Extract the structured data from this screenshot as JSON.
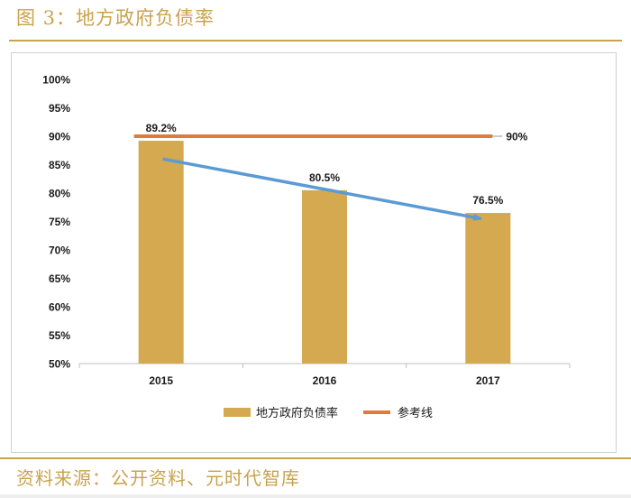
{
  "figure": {
    "title": "图 3：地方政府负债率",
    "source": "资料来源：公开资料、元时代智库"
  },
  "colors": {
    "bar": "#d4a94f",
    "reference": "#e07b39",
    "trend": "#5b9bd5",
    "accent": "#c8a24e",
    "text": "#1a1a1a"
  },
  "chart_data": {
    "type": "bar",
    "title": "",
    "xlabel": "",
    "ylabel": "",
    "categories": [
      "2015",
      "2016",
      "2017"
    ],
    "series": [
      {
        "name": "地方政府负债率",
        "values": [
          89.2,
          80.5,
          76.5
        ],
        "labels": [
          "89.2%",
          "80.5%",
          "76.5%"
        ]
      }
    ],
    "reference_line": {
      "name": "参考线",
      "value": 90,
      "label": "90%"
    },
    "trend_arrow": {
      "from": 86,
      "to": 75.5
    },
    "ylim": [
      50,
      100
    ],
    "yticks": [
      50,
      55,
      60,
      65,
      70,
      75,
      80,
      85,
      90,
      95,
      100
    ],
    "ytick_labels": [
      "50%",
      "55%",
      "60%",
      "65%",
      "70%",
      "75%",
      "80%",
      "85%",
      "90%",
      "95%",
      "100%"
    ],
    "legend": [
      "地方政府负债率",
      "参考线"
    ],
    "legend_position": "bottom",
    "grid": false
  }
}
